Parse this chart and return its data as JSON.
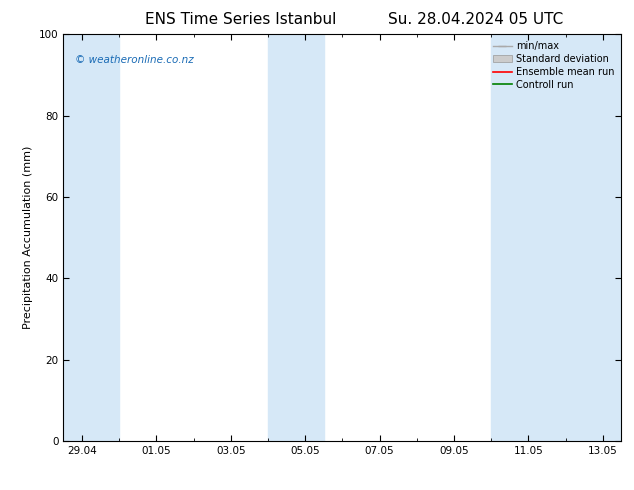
{
  "title_left": "ENS Time Series Istanbul",
  "title_right": "Su. 28.04.2024 05 UTC",
  "ylabel": "Precipitation Accumulation (mm)",
  "ylim": [
    0,
    100
  ],
  "yticks": [
    0,
    20,
    40,
    60,
    80,
    100
  ],
  "x_tick_labels": [
    "29.04",
    "01.05",
    "03.05",
    "05.05",
    "07.05",
    "09.05",
    "11.05",
    "13.05"
  ],
  "x_tick_positions": [
    0,
    2,
    4,
    6,
    8,
    10,
    12,
    14
  ],
  "x_min": -0.5,
  "x_max": 14.5,
  "shaded_bands": [
    {
      "x_start": -0.5,
      "x_end": 1.0,
      "color": "#d6e8f7"
    },
    {
      "x_start": 5.0,
      "x_end": 6.5,
      "color": "#d6e8f7"
    },
    {
      "x_start": 11.0,
      "x_end": 14.5,
      "color": "#d6e8f7"
    }
  ],
  "watermark_text": "© weatheronline.co.nz",
  "watermark_color": "#1a6bb5",
  "legend_items": [
    {
      "label": "min/max",
      "color": "#aaaaaa",
      "type": "errorbar"
    },
    {
      "label": "Standard deviation",
      "color": "#cccccc",
      "type": "bar"
    },
    {
      "label": "Ensemble mean run",
      "color": "red",
      "type": "line"
    },
    {
      "label": "Controll run",
      "color": "green",
      "type": "line"
    }
  ],
  "bg_color": "#ffffff",
  "axes_bg_color": "#ffffff",
  "title_fontsize": 11,
  "label_fontsize": 8,
  "tick_fontsize": 7.5,
  "legend_fontsize": 7,
  "watermark_fontsize": 7.5
}
